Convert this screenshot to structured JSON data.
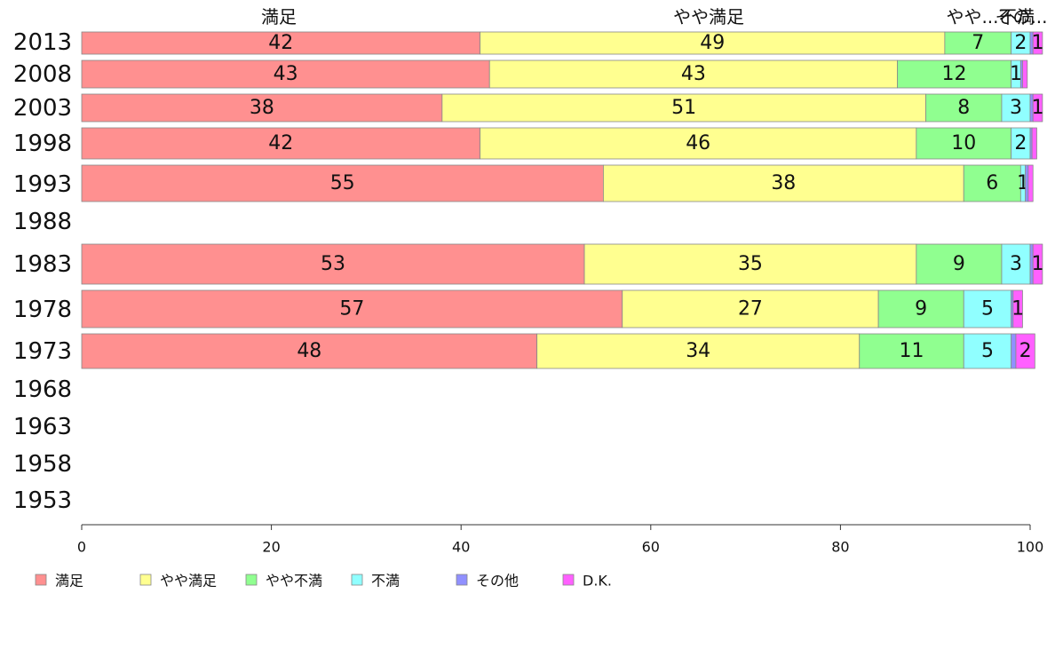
{
  "chart_data": {
    "type": "bar",
    "orientation": "horizontal",
    "stacked": true,
    "categories": [
      "2013",
      "2008",
      "2003",
      "1998",
      "1993",
      "1988",
      "1983",
      "1978",
      "1973",
      "1968",
      "1963",
      "1958",
      "1953"
    ],
    "series": [
      {
        "name": "満足",
        "color": "#ff9090",
        "values": [
          42,
          43,
          38,
          42,
          55,
          null,
          53,
          57,
          48,
          null,
          null,
          null,
          null
        ]
      },
      {
        "name": "やや満足",
        "color": "#ffff90",
        "values": [
          49,
          43,
          51,
          46,
          38,
          null,
          35,
          27,
          34,
          null,
          null,
          null,
          null
        ]
      },
      {
        "name": "やや不満",
        "color": "#90ff90",
        "values": [
          7,
          12,
          8,
          10,
          6,
          null,
          9,
          9,
          11,
          null,
          null,
          null,
          null
        ]
      },
      {
        "name": "不満",
        "color": "#90ffff",
        "values": [
          2,
          1,
          3,
          2,
          0.5,
          null,
          3,
          5,
          5,
          null,
          null,
          null,
          null
        ]
      },
      {
        "name": "その他",
        "color": "#9090ff",
        "values": [
          0.3,
          0.2,
          0.3,
          0.2,
          0.3,
          null,
          0.3,
          0.2,
          0.5,
          null,
          null,
          null,
          null
        ]
      },
      {
        "name": "D.K.",
        "color": "#ff60ff",
        "values": [
          1,
          0.5,
          1,
          0.5,
          0.5,
          null,
          1,
          1,
          2,
          null,
          null,
          null,
          null
        ]
      }
    ],
    "data_labels": [
      [
        "42",
        "49",
        "7",
        "2",
        "",
        "1"
      ],
      [
        "43",
        "43",
        "12",
        "1",
        "",
        ""
      ],
      [
        "38",
        "51",
        "8",
        "3",
        "",
        "1"
      ],
      [
        "42",
        "46",
        "10",
        "2",
        "",
        ""
      ],
      [
        "55",
        "38",
        "6",
        "1",
        "",
        ""
      ],
      [
        "",
        "",
        "",
        "",
        "",
        ""
      ],
      [
        "53",
        "35",
        "9",
        "3",
        "",
        "1"
      ],
      [
        "57",
        "27",
        "9",
        "5",
        "",
        "1"
      ],
      [
        "48",
        "34",
        "11",
        "5",
        "",
        "2"
      ],
      [
        "",
        "",
        "",
        "",
        "",
        ""
      ],
      [
        "",
        "",
        "",
        "",
        "",
        ""
      ],
      [
        "",
        "",
        "",
        "",
        "",
        ""
      ],
      [
        "",
        "",
        "",
        "",
        "",
        ""
      ]
    ],
    "top_labels": [
      "満足",
      "やや満足",
      "やや...",
      "不満",
      "その..."
    ],
    "x_ticks": [
      "0",
      "20",
      "40",
      "60",
      "80",
      "100"
    ],
    "xlim": [
      0,
      100
    ],
    "grid": false,
    "legend_position": "bottom"
  }
}
